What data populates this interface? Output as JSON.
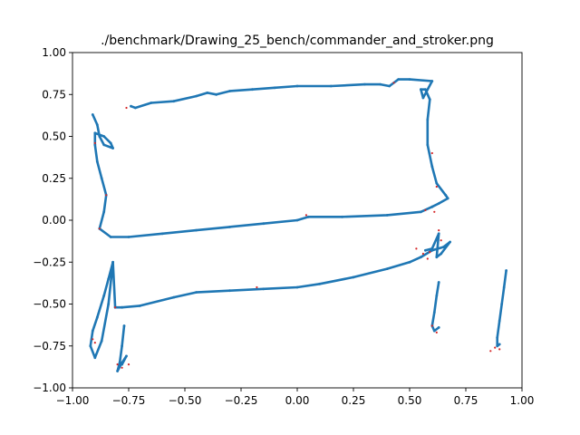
{
  "chart_data": {
    "type": "scatter",
    "title": "./benchmark/Drawing_25_bench/commander_and_stroker.png",
    "xlabel": "",
    "ylabel": "",
    "xlim": [
      -1.0,
      1.0
    ],
    "ylim": [
      -1.0,
      1.0
    ],
    "xticks": [
      -1.0,
      -0.75,
      -0.5,
      -0.25,
      0.0,
      0.25,
      0.5,
      0.75,
      1.0
    ],
    "yticks": [
      -1.0,
      -0.75,
      -0.5,
      -0.25,
      0.0,
      0.25,
      0.5,
      0.75,
      1.0
    ],
    "xtick_labels": [
      "−1.00",
      "−0.75",
      "−0.50",
      "−0.25",
      "0.00",
      "0.25",
      "0.50",
      "0.75",
      "1.00"
    ],
    "ytick_labels": [
      "−1.00",
      "−0.75",
      "−0.50",
      "−0.25",
      "0.00",
      "0.25",
      "0.50",
      "0.75",
      "1.00"
    ],
    "grid": false,
    "legend": "none",
    "colors": {
      "stroke": "#1f77b4",
      "marker": "#d62728",
      "axes": "#000000",
      "background": "#ffffff"
    },
    "series": [
      {
        "points": [
          [
            -0.91,
            0.63
          ],
          [
            -0.89,
            0.57
          ],
          [
            -0.88,
            0.5
          ],
          [
            -0.86,
            0.45
          ],
          [
            -0.82,
            0.43
          ],
          [
            -0.83,
            0.46
          ],
          [
            -0.86,
            0.5
          ],
          [
            -0.9,
            0.52
          ],
          [
            -0.9,
            0.45
          ],
          [
            -0.89,
            0.35
          ],
          [
            -0.87,
            0.25
          ],
          [
            -0.85,
            0.15
          ],
          [
            -0.86,
            0.05
          ],
          [
            -0.88,
            -0.05
          ],
          [
            -0.83,
            -0.1
          ],
          [
            -0.75,
            -0.1
          ],
          [
            -0.6,
            -0.08
          ],
          [
            -0.45,
            -0.06
          ],
          [
            -0.3,
            -0.04
          ],
          [
            -0.15,
            -0.02
          ],
          [
            0.0,
            0.0
          ],
          [
            0.05,
            0.02
          ],
          [
            0.2,
            0.02
          ],
          [
            0.4,
            0.03
          ],
          [
            0.55,
            0.05
          ],
          [
            0.6,
            0.08
          ],
          [
            0.63,
            0.1
          ],
          [
            0.67,
            0.13
          ],
          [
            0.66,
            0.15
          ],
          [
            0.62,
            0.22
          ],
          [
            0.6,
            0.32
          ],
          [
            0.58,
            0.45
          ],
          [
            0.58,
            0.6
          ],
          [
            0.59,
            0.72
          ],
          [
            0.57,
            0.78
          ],
          [
            0.55,
            0.78
          ],
          [
            0.56,
            0.73
          ],
          [
            0.6,
            0.83
          ],
          [
            0.5,
            0.84
          ],
          [
            0.45,
            0.84
          ],
          [
            0.41,
            0.8
          ],
          [
            0.37,
            0.81
          ],
          [
            0.3,
            0.81
          ],
          [
            0.15,
            0.8
          ],
          [
            0.0,
            0.8
          ],
          [
            -0.1,
            0.79
          ],
          [
            -0.2,
            0.78
          ],
          [
            -0.3,
            0.77
          ],
          [
            -0.36,
            0.75
          ],
          [
            -0.4,
            0.76
          ],
          [
            -0.45,
            0.74
          ],
          [
            -0.55,
            0.71
          ],
          [
            -0.65,
            0.7
          ],
          [
            -0.72,
            0.67
          ],
          [
            -0.74,
            0.68
          ]
        ]
      },
      {
        "points": [
          [
            -0.82,
            -0.25
          ],
          [
            -0.84,
            -0.35
          ],
          [
            -0.86,
            -0.45
          ],
          [
            -0.89,
            -0.58
          ],
          [
            -0.91,
            -0.66
          ],
          [
            -0.92,
            -0.75
          ],
          [
            -0.9,
            -0.82
          ],
          [
            -0.87,
            -0.72
          ],
          [
            -0.84,
            -0.5
          ],
          [
            -0.82,
            -0.25
          ],
          [
            -0.81,
            -0.52
          ],
          [
            -0.78,
            -0.52
          ],
          [
            -0.7,
            -0.51
          ],
          [
            -0.55,
            -0.46
          ],
          [
            -0.45,
            -0.43
          ],
          [
            -0.3,
            -0.42
          ],
          [
            -0.15,
            -0.41
          ],
          [
            0.0,
            -0.4
          ],
          [
            0.1,
            -0.38
          ],
          [
            0.25,
            -0.34
          ],
          [
            0.4,
            -0.29
          ],
          [
            0.5,
            -0.25
          ],
          [
            0.55,
            -0.22
          ],
          [
            0.6,
            -0.18
          ],
          [
            0.65,
            -0.16
          ],
          [
            0.68,
            -0.13
          ],
          [
            0.64,
            -0.2
          ],
          [
            0.62,
            -0.22
          ],
          [
            0.63,
            -0.08
          ],
          [
            0.6,
            -0.17
          ],
          [
            0.57,
            -0.18
          ]
        ]
      },
      {
        "points": [
          [
            -0.77,
            -0.63
          ],
          [
            -0.78,
            -0.75
          ],
          [
            -0.79,
            -0.85
          ],
          [
            -0.8,
            -0.9
          ],
          [
            -0.78,
            -0.85
          ],
          [
            -0.76,
            -0.81
          ],
          [
            -0.78,
            -0.86
          ]
        ]
      },
      {
        "points": [
          [
            0.63,
            -0.37
          ],
          [
            0.62,
            -0.45
          ],
          [
            0.61,
            -0.55
          ],
          [
            0.6,
            -0.63
          ],
          [
            0.61,
            -0.66
          ],
          [
            0.63,
            -0.64
          ]
        ]
      },
      {
        "points": [
          [
            0.93,
            -0.3
          ],
          [
            0.92,
            -0.4
          ],
          [
            0.91,
            -0.5
          ],
          [
            0.9,
            -0.6
          ],
          [
            0.89,
            -0.7
          ],
          [
            0.89,
            -0.75
          ],
          [
            0.9,
            -0.74
          ]
        ]
      }
    ],
    "markers": [
      [
        -0.76,
        0.67
      ],
      [
        -0.9,
        0.46
      ],
      [
        -0.85,
        0.15
      ],
      [
        -0.88,
        -0.05
      ],
      [
        -0.91,
        -0.71
      ],
      [
        -0.9,
        -0.73
      ],
      [
        -0.81,
        -0.52
      ],
      [
        -0.8,
        -0.86
      ],
      [
        -0.78,
        -0.88
      ],
      [
        -0.75,
        -0.86
      ],
      [
        -0.18,
        -0.4
      ],
      [
        0.04,
        0.03
      ],
      [
        0.53,
        -0.17
      ],
      [
        0.56,
        -0.2
      ],
      [
        0.58,
        -0.23
      ],
      [
        0.59,
        -0.19
      ],
      [
        0.63,
        -0.06
      ],
      [
        0.64,
        -0.12
      ],
      [
        0.6,
        -0.63
      ],
      [
        0.62,
        -0.67
      ],
      [
        0.6,
        0.4
      ],
      [
        0.62,
        0.2
      ],
      [
        0.61,
        0.05
      ],
      [
        0.57,
        0.06
      ],
      [
        0.43,
        0.82
      ],
      [
        0.88,
        -0.76
      ],
      [
        0.86,
        -0.78
      ],
      [
        0.9,
        -0.77
      ]
    ]
  }
}
